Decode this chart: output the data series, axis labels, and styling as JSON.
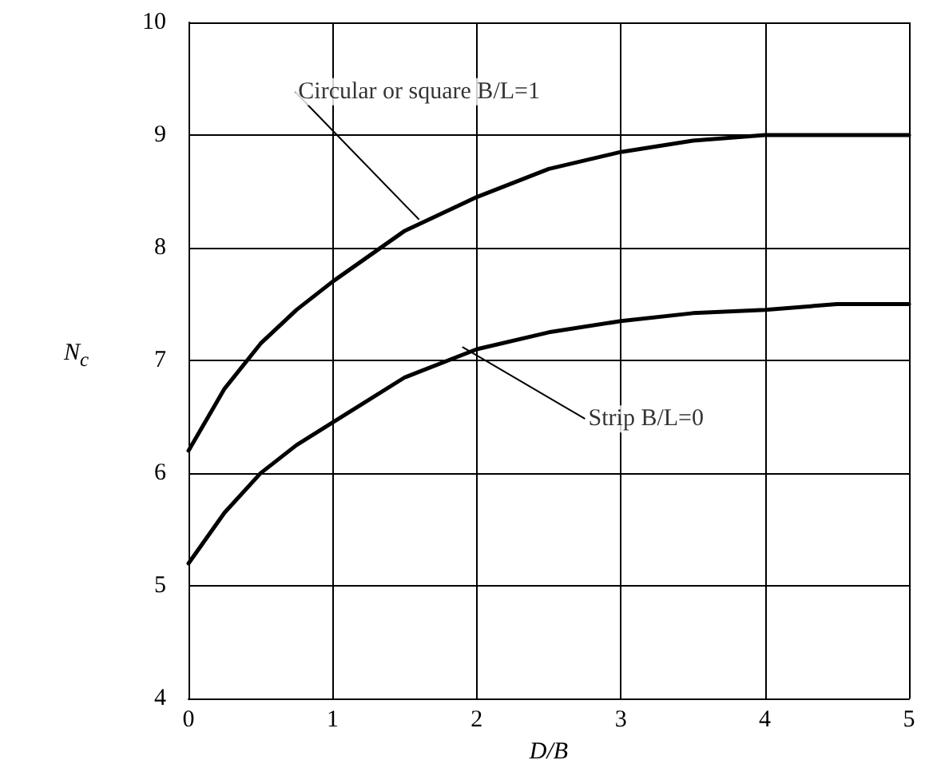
{
  "chart_data": {
    "type": "line",
    "xlabel": "D/B",
    "ylabel": "N$_{c}$",
    "xlim": [
      0,
      5
    ],
    "xticks": [
      0,
      1,
      2,
      3,
      4,
      5
    ],
    "ylim": [
      4,
      10
    ],
    "yticks": [
      4,
      5,
      6,
      7,
      8,
      9,
      10
    ],
    "grid": true,
    "line_style": "solid",
    "marker": "none",
    "series": [
      {
        "color": "#000000",
        "x": [
          0,
          0.25,
          0.5,
          0.75,
          1,
          1.5,
          2,
          2.5,
          3,
          3.5,
          4,
          4.5,
          5
        ],
        "values": [
          6.2,
          6.75,
          7.15,
          7.45,
          7.7,
          8.15,
          8.45,
          8.7,
          8.85,
          8.95,
          9.0,
          9.0,
          9.0
        ]
      },
      {
        "color": "#000000",
        "x": [
          0,
          0.25,
          0.5,
          0.75,
          1,
          1.5,
          2,
          2.5,
          3,
          3.5,
          4,
          4.5,
          5
        ],
        "values": [
          5.2,
          5.65,
          6.0,
          6.25,
          6.45,
          6.85,
          7.1,
          7.25,
          7.35,
          7.42,
          7.45,
          7.5,
          7.5
        ]
      }
    ],
    "annotations": [
      {
        "text": "Circular or square B/L=1",
        "x": 1.6,
        "y": 8.25
      },
      {
        "text": "Strip B/L=0",
        "x": 1.9,
        "y": 7.12
      }
    ]
  }
}
